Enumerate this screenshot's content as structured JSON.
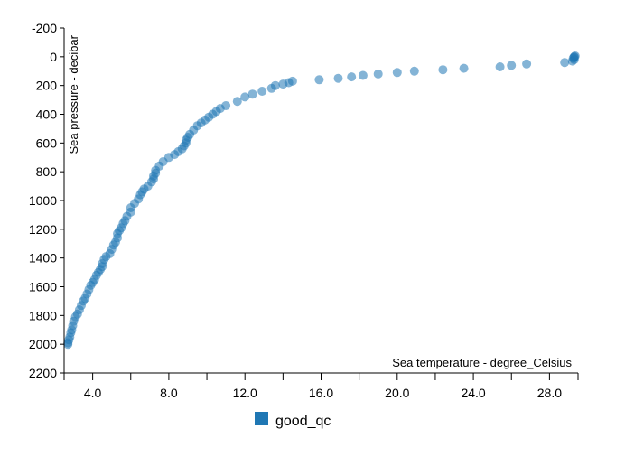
{
  "chart_data": {
    "type": "scatter",
    "xlabel": "Sea temperature - degree_Celsius",
    "ylabel": "Sea pressure - decibar",
    "xlim": [
      2.5,
      29.5
    ],
    "ylim": [
      -200,
      2200
    ],
    "y_inverted": true,
    "x_ticks": [
      {
        "value": 4,
        "label": "4.0"
      },
      {
        "value": 8,
        "label": "8.0"
      },
      {
        "value": 12,
        "label": "12.0"
      },
      {
        "value": 16,
        "label": "16.0"
      },
      {
        "value": 20,
        "label": "20.0"
      },
      {
        "value": 24,
        "label": "24.0"
      },
      {
        "value": 28,
        "label": "28.0"
      }
    ],
    "x_minor_ticks": [
      6,
      10,
      14,
      18,
      22,
      26
    ],
    "y_ticks": [
      {
        "value": -200,
        "label": "-200"
      },
      {
        "value": 0,
        "label": "0"
      },
      {
        "value": 200,
        "label": "200"
      },
      {
        "value": 400,
        "label": "400"
      },
      {
        "value": 600,
        "label": "600"
      },
      {
        "value": 800,
        "label": "800"
      },
      {
        "value": 1000,
        "label": "1000"
      },
      {
        "value": 1200,
        "label": "1200"
      },
      {
        "value": 1400,
        "label": "1400"
      },
      {
        "value": 1600,
        "label": "1600"
      },
      {
        "value": 1800,
        "label": "1800"
      },
      {
        "value": 2000,
        "label": "2000"
      },
      {
        "value": 2200,
        "label": "2200"
      }
    ],
    "legend_position": "bottom-center",
    "grid": false,
    "series": [
      {
        "name": "good_qc",
        "color": "#1f77b4",
        "points": [
          [
            29.3,
            0
          ],
          [
            29.35,
            -5
          ],
          [
            29.3,
            5
          ],
          [
            29.25,
            10
          ],
          [
            29.3,
            20
          ],
          [
            29.2,
            30
          ],
          [
            28.8,
            40
          ],
          [
            26.8,
            50
          ],
          [
            26.0,
            60
          ],
          [
            25.4,
            70
          ],
          [
            23.5,
            80
          ],
          [
            22.4,
            90
          ],
          [
            20.9,
            100
          ],
          [
            20.0,
            110
          ],
          [
            19.0,
            120
          ],
          [
            18.2,
            130
          ],
          [
            17.6,
            140
          ],
          [
            16.9,
            150
          ],
          [
            15.9,
            160
          ],
          [
            14.5,
            170
          ],
          [
            14.3,
            180
          ],
          [
            14.0,
            190
          ],
          [
            13.6,
            200
          ],
          [
            13.4,
            220
          ],
          [
            12.9,
            240
          ],
          [
            12.4,
            260
          ],
          [
            12.0,
            280
          ],
          [
            11.6,
            310
          ],
          [
            11.0,
            340
          ],
          [
            10.7,
            360
          ],
          [
            10.5,
            380
          ],
          [
            10.3,
            400
          ],
          [
            10.1,
            420
          ],
          [
            9.9,
            440
          ],
          [
            9.7,
            460
          ],
          [
            9.5,
            480
          ],
          [
            9.3,
            510
          ],
          [
            9.1,
            540
          ],
          [
            9.0,
            560
          ],
          [
            8.9,
            580
          ],
          [
            8.9,
            600
          ],
          [
            8.8,
            620
          ],
          [
            8.7,
            640
          ],
          [
            8.5,
            660
          ],
          [
            8.3,
            680
          ],
          [
            8.0,
            700
          ],
          [
            7.7,
            730
          ],
          [
            7.5,
            760
          ],
          [
            7.3,
            790
          ],
          [
            7.3,
            810
          ],
          [
            7.2,
            830
          ],
          [
            7.2,
            850
          ],
          [
            7.1,
            870
          ],
          [
            6.9,
            900
          ],
          [
            6.7,
            920
          ],
          [
            6.6,
            940
          ],
          [
            6.5,
            960
          ],
          [
            6.4,
            990
          ],
          [
            6.2,
            1020
          ],
          [
            6.0,
            1050
          ],
          [
            6.0,
            1080
          ],
          [
            5.8,
            1110
          ],
          [
            5.7,
            1140
          ],
          [
            5.6,
            1160
          ],
          [
            5.5,
            1190
          ],
          [
            5.4,
            1210
          ],
          [
            5.3,
            1230
          ],
          [
            5.3,
            1260
          ],
          [
            5.2,
            1290
          ],
          [
            5.1,
            1310
          ],
          [
            5.0,
            1340
          ],
          [
            4.9,
            1370
          ],
          [
            4.7,
            1390
          ],
          [
            4.6,
            1410
          ],
          [
            4.5,
            1440
          ],
          [
            4.5,
            1460
          ],
          [
            4.4,
            1480
          ],
          [
            4.3,
            1500
          ],
          [
            4.2,
            1520
          ],
          [
            4.1,
            1550
          ],
          [
            4.0,
            1570
          ],
          [
            3.9,
            1590
          ],
          [
            3.8,
            1620
          ],
          [
            3.7,
            1650
          ],
          [
            3.6,
            1680
          ],
          [
            3.5,
            1700
          ],
          [
            3.4,
            1730
          ],
          [
            3.3,
            1760
          ],
          [
            3.2,
            1790
          ],
          [
            3.1,
            1810
          ],
          [
            3.0,
            1840
          ],
          [
            2.95,
            1870
          ],
          [
            2.9,
            1900
          ],
          [
            2.85,
            1920
          ],
          [
            2.8,
            1950
          ],
          [
            2.75,
            1970
          ],
          [
            2.7,
            1990
          ],
          [
            2.7,
            2000
          ]
        ]
      }
    ]
  }
}
